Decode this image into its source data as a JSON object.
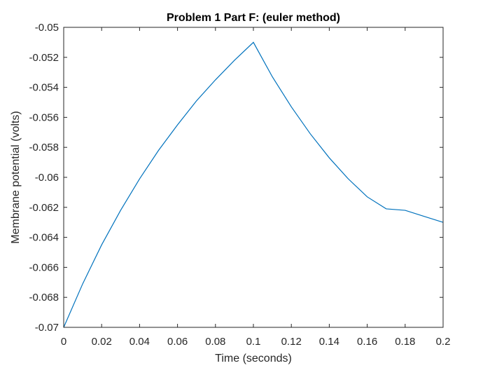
{
  "chart_data": {
    "type": "line",
    "title": "Problem 1 Part F: (euler method)",
    "xlabel": "Time (seconds)",
    "ylabel": "Membrane potential (volts)",
    "xlim": [
      0,
      0.2
    ],
    "ylim": [
      -0.07,
      -0.05
    ],
    "x_ticks": [
      0,
      0.02,
      0.04,
      0.06,
      0.08,
      0.1,
      0.12,
      0.14,
      0.16,
      0.18,
      0.2
    ],
    "x_tick_labels": [
      "0",
      "0.02",
      "0.04",
      "0.06",
      "0.08",
      "0.1",
      "0.12",
      "0.14",
      "0.16",
      "0.18",
      "0.2"
    ],
    "y_ticks": [
      -0.05,
      -0.052,
      -0.054,
      -0.056,
      -0.058,
      -0.06,
      -0.062,
      -0.064,
      -0.066,
      -0.068,
      -0.07
    ],
    "y_tick_labels": [
      "-0.05",
      "-0.052",
      "-0.054",
      "-0.056",
      "-0.058",
      "-0.06",
      "-0.062",
      "-0.064",
      "-0.066",
      "-0.068",
      "-0.07"
    ],
    "grid": false,
    "box": true,
    "line_color": "#0072BD",
    "series": [
      {
        "x": [
          0,
          0.01,
          0.02,
          0.03,
          0.04,
          0.05,
          0.06,
          0.07,
          0.08,
          0.09,
          0.1,
          0.11,
          0.12,
          0.13,
          0.14,
          0.15,
          0.16,
          0.17,
          0.18,
          0.19,
          0.2
        ],
        "values": [
          -0.07,
          -0.0671,
          -0.0645,
          -0.0622,
          -0.0601,
          -0.0582,
          -0.0565,
          -0.0549,
          -0.0535,
          -0.0522,
          -0.051,
          -0.0533,
          -0.0553,
          -0.0571,
          -0.0587,
          -0.0601,
          -0.0613,
          -0.0621,
          -0.0622,
          -0.0626,
          -0.063
        ]
      }
    ]
  }
}
